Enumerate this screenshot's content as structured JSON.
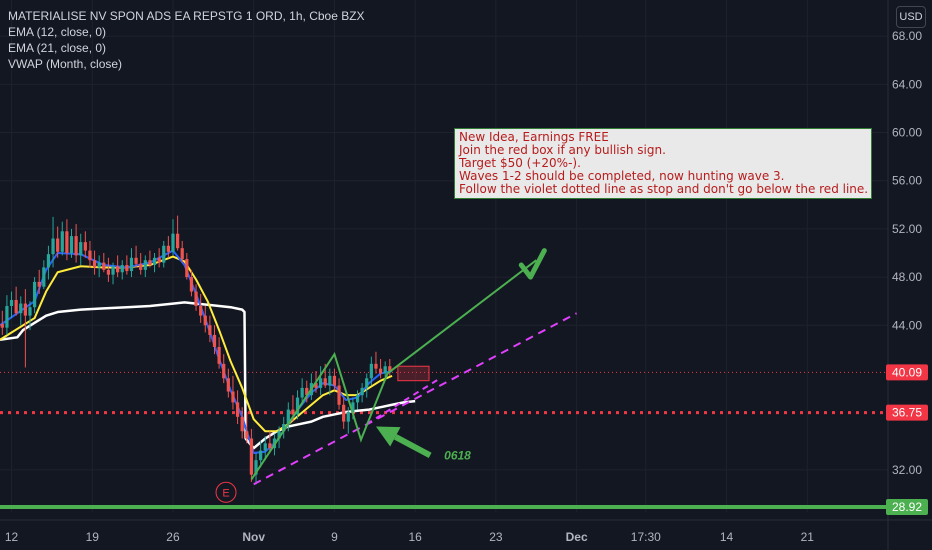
{
  "header": {
    "symbol_line": "MATERIALISE NV SPON ADS EA REPSTG 1 ORD, 1h, Cboe BZX",
    "indicators": [
      "EMA (12, close, 0)",
      "EMA (21, close, 0)",
      "VWAP (Month, close)"
    ],
    "currency": "USD"
  },
  "note": {
    "lines": [
      "New Idea, Earnings FREE",
      "Join the red box if any bullish sign.",
      "Target $50 (+20%-).",
      "Waves 1-2 should be completed, now hunting wave 3.",
      "Follow the violet dotted line as stop and don't go below the red line."
    ]
  },
  "chart_data": {
    "type": "candlestick",
    "y_axis": {
      "ticks": [
        "68.00",
        "64.00",
        "60.00",
        "56.00",
        "52.00",
        "48.00",
        "44.00",
        "32.00"
      ],
      "ylim": [
        28.5,
        71.0
      ]
    },
    "x_axis": {
      "ticks": [
        "12",
        "19",
        "26",
        "Nov",
        "9",
        "16",
        "23",
        "Dec",
        "17:30",
        "14",
        "21"
      ],
      "tick_positions": [
        0,
        7,
        14,
        21,
        28,
        35,
        42,
        49,
        55,
        62,
        69
      ],
      "xlim": [
        -1,
        76
      ]
    },
    "price_labels": [
      {
        "value": 40.09,
        "label": "40.09",
        "color": "#f23645"
      },
      {
        "value": 36.75,
        "label": "36.75",
        "color": "#f23645"
      },
      {
        "value": 28.92,
        "label": "28.92",
        "color": "#4caf50"
      }
    ],
    "horizontal_lines": [
      {
        "value": 40.09,
        "style": "dotted",
        "color": "#f23645"
      },
      {
        "value": 36.75,
        "style": "dotted",
        "color": "#f23645"
      },
      {
        "value": 28.92,
        "style": "solid",
        "color": "#4caf50"
      }
    ],
    "candles": [
      {
        "x": -0.8,
        "o": 44.1,
        "h": 45.2,
        "l": 43.2,
        "c": 43.8
      },
      {
        "x": -0.4,
        "o": 43.8,
        "h": 46.5,
        "l": 43.2,
        "c": 45.6
      },
      {
        "x": 0.0,
        "o": 45.6,
        "h": 46.8,
        "l": 44.6,
        "c": 46.1
      },
      {
        "x": 0.4,
        "o": 46.1,
        "h": 47.2,
        "l": 44.8,
        "c": 45.0
      },
      {
        "x": 0.8,
        "o": 45.0,
        "h": 46.4,
        "l": 44.0,
        "c": 45.8
      },
      {
        "x": 1.2,
        "o": 45.8,
        "h": 47.0,
        "l": 40.5,
        "c": 44.8
      },
      {
        "x": 1.6,
        "o": 44.8,
        "h": 46.0,
        "l": 43.6,
        "c": 45.5
      },
      {
        "x": 2.0,
        "o": 45.5,
        "h": 48.0,
        "l": 45.0,
        "c": 47.6
      },
      {
        "x": 2.4,
        "o": 47.6,
        "h": 48.6,
        "l": 46.6,
        "c": 47.2
      },
      {
        "x": 2.8,
        "o": 47.2,
        "h": 49.4,
        "l": 47.0,
        "c": 48.8
      },
      {
        "x": 3.2,
        "o": 48.8,
        "h": 50.6,
        "l": 47.8,
        "c": 49.9
      },
      {
        "x": 3.6,
        "o": 49.9,
        "h": 53.0,
        "l": 48.8,
        "c": 51.2
      },
      {
        "x": 4.0,
        "o": 51.2,
        "h": 52.2,
        "l": 49.6,
        "c": 50.1
      },
      {
        "x": 4.4,
        "o": 50.1,
        "h": 52.6,
        "l": 49.8,
        "c": 51.8
      },
      {
        "x": 4.8,
        "o": 51.8,
        "h": 52.8,
        "l": 49.4,
        "c": 50.0
      },
      {
        "x": 5.2,
        "o": 50.0,
        "h": 52.0,
        "l": 49.6,
        "c": 51.4
      },
      {
        "x": 5.6,
        "o": 51.4,
        "h": 52.4,
        "l": 49.2,
        "c": 49.8
      },
      {
        "x": 6.0,
        "o": 49.8,
        "h": 51.6,
        "l": 49.0,
        "c": 50.9
      },
      {
        "x": 6.4,
        "o": 50.9,
        "h": 51.8,
        "l": 49.6,
        "c": 50.2
      },
      {
        "x": 6.8,
        "o": 50.2,
        "h": 51.0,
        "l": 48.8,
        "c": 49.4
      },
      {
        "x": 7.2,
        "o": 49.4,
        "h": 50.2,
        "l": 48.2,
        "c": 48.8
      },
      {
        "x": 7.6,
        "o": 48.8,
        "h": 49.8,
        "l": 48.0,
        "c": 49.2
      },
      {
        "x": 8.0,
        "o": 49.2,
        "h": 50.0,
        "l": 48.4,
        "c": 48.6
      },
      {
        "x": 8.4,
        "o": 48.6,
        "h": 49.6,
        "l": 47.6,
        "c": 48.2
      },
      {
        "x": 8.8,
        "o": 48.2,
        "h": 49.2,
        "l": 47.4,
        "c": 48.9
      },
      {
        "x": 9.2,
        "o": 48.9,
        "h": 49.8,
        "l": 48.0,
        "c": 48.4
      },
      {
        "x": 9.6,
        "o": 48.4,
        "h": 49.4,
        "l": 47.8,
        "c": 49.0
      },
      {
        "x": 10.0,
        "o": 49.0,
        "h": 49.8,
        "l": 48.2,
        "c": 48.5
      },
      {
        "x": 10.4,
        "o": 48.5,
        "h": 50.4,
        "l": 48.0,
        "c": 49.6
      },
      {
        "x": 10.8,
        "o": 49.6,
        "h": 50.6,
        "l": 48.8,
        "c": 49.1
      },
      {
        "x": 11.2,
        "o": 49.1,
        "h": 50.0,
        "l": 48.2,
        "c": 48.6
      },
      {
        "x": 11.6,
        "o": 48.6,
        "h": 49.8,
        "l": 48.0,
        "c": 49.4
      },
      {
        "x": 12.0,
        "o": 49.4,
        "h": 50.2,
        "l": 48.8,
        "c": 49.0
      },
      {
        "x": 12.4,
        "o": 49.0,
        "h": 50.0,
        "l": 48.4,
        "c": 49.6
      },
      {
        "x": 12.8,
        "o": 49.6,
        "h": 50.4,
        "l": 48.8,
        "c": 49.2
      },
      {
        "x": 13.2,
        "o": 49.2,
        "h": 51.0,
        "l": 48.8,
        "c": 50.6
      },
      {
        "x": 13.6,
        "o": 50.6,
        "h": 51.4,
        "l": 49.6,
        "c": 50.1
      },
      {
        "x": 14.0,
        "o": 50.1,
        "h": 52.8,
        "l": 49.8,
        "c": 51.6
      },
      {
        "x": 14.4,
        "o": 51.6,
        "h": 53.1,
        "l": 50.2,
        "c": 50.4
      },
      {
        "x": 14.8,
        "o": 50.4,
        "h": 51.0,
        "l": 49.2,
        "c": 49.5
      },
      {
        "x": 15.2,
        "o": 49.5,
        "h": 50.0,
        "l": 47.8,
        "c": 48.0
      },
      {
        "x": 15.6,
        "o": 48.0,
        "h": 48.6,
        "l": 46.4,
        "c": 46.8
      },
      {
        "x": 16.0,
        "o": 46.8,
        "h": 47.4,
        "l": 45.2,
        "c": 45.6
      },
      {
        "x": 16.4,
        "o": 45.6,
        "h": 46.6,
        "l": 44.2,
        "c": 44.8
      },
      {
        "x": 16.8,
        "o": 44.8,
        "h": 45.6,
        "l": 43.4,
        "c": 44.0
      },
      {
        "x": 17.2,
        "o": 44.0,
        "h": 44.8,
        "l": 42.6,
        "c": 43.2
      },
      {
        "x": 17.6,
        "o": 43.2,
        "h": 44.0,
        "l": 41.6,
        "c": 42.2
      },
      {
        "x": 18.0,
        "o": 42.2,
        "h": 43.0,
        "l": 40.4,
        "c": 40.8
      },
      {
        "x": 18.4,
        "o": 40.8,
        "h": 41.6,
        "l": 39.2,
        "c": 39.6
      },
      {
        "x": 18.8,
        "o": 39.6,
        "h": 40.4,
        "l": 38.0,
        "c": 38.5
      },
      {
        "x": 19.2,
        "o": 38.5,
        "h": 39.8,
        "l": 37.0,
        "c": 37.6
      },
      {
        "x": 19.6,
        "o": 37.6,
        "h": 38.6,
        "l": 35.8,
        "c": 36.4
      },
      {
        "x": 20.0,
        "o": 36.4,
        "h": 37.2,
        "l": 34.6,
        "c": 35.2
      },
      {
        "x": 20.4,
        "o": 35.2,
        "h": 36.8,
        "l": 34.2,
        "c": 34.6
      },
      {
        "x": 20.8,
        "o": 34.6,
        "h": 35.4,
        "l": 31.0,
        "c": 31.6
      },
      {
        "x": 21.2,
        "o": 31.6,
        "h": 33.4,
        "l": 30.8,
        "c": 32.8
      },
      {
        "x": 21.6,
        "o": 32.8,
        "h": 34.4,
        "l": 32.2,
        "c": 33.6
      },
      {
        "x": 22.0,
        "o": 33.6,
        "h": 34.8,
        "l": 32.8,
        "c": 34.2
      },
      {
        "x": 22.4,
        "o": 34.2,
        "h": 35.2,
        "l": 33.4,
        "c": 33.8
      },
      {
        "x": 22.8,
        "o": 33.8,
        "h": 35.0,
        "l": 33.2,
        "c": 34.6
      },
      {
        "x": 23.2,
        "o": 34.6,
        "h": 35.6,
        "l": 33.8,
        "c": 35.2
      },
      {
        "x": 23.6,
        "o": 35.2,
        "h": 36.4,
        "l": 34.6,
        "c": 35.8
      },
      {
        "x": 24.0,
        "o": 35.8,
        "h": 37.6,
        "l": 35.2,
        "c": 37.0
      },
      {
        "x": 24.4,
        "o": 37.0,
        "h": 38.2,
        "l": 36.0,
        "c": 36.6
      },
      {
        "x": 24.8,
        "o": 36.6,
        "h": 38.6,
        "l": 36.2,
        "c": 38.0
      },
      {
        "x": 25.2,
        "o": 38.0,
        "h": 39.6,
        "l": 37.4,
        "c": 38.8
      },
      {
        "x": 25.6,
        "o": 38.8,
        "h": 39.4,
        "l": 37.6,
        "c": 38.2
      },
      {
        "x": 26.0,
        "o": 38.2,
        "h": 40.0,
        "l": 37.8,
        "c": 39.2
      },
      {
        "x": 26.4,
        "o": 39.2,
        "h": 40.2,
        "l": 38.4,
        "c": 38.8
      },
      {
        "x": 26.8,
        "o": 38.8,
        "h": 40.6,
        "l": 38.2,
        "c": 39.6
      },
      {
        "x": 27.2,
        "o": 39.6,
        "h": 40.8,
        "l": 38.8,
        "c": 39.0
      },
      {
        "x": 27.6,
        "o": 39.0,
        "h": 40.4,
        "l": 38.2,
        "c": 39.8
      },
      {
        "x": 28.0,
        "o": 39.8,
        "h": 40.4,
        "l": 38.6,
        "c": 39.0
      },
      {
        "x": 28.4,
        "o": 39.0,
        "h": 39.6,
        "l": 37.0,
        "c": 37.4
      },
      {
        "x": 28.8,
        "o": 37.4,
        "h": 38.0,
        "l": 35.4,
        "c": 36.0
      },
      {
        "x": 29.2,
        "o": 36.0,
        "h": 37.2,
        "l": 35.0,
        "c": 36.8
      },
      {
        "x": 29.6,
        "o": 36.8,
        "h": 38.0,
        "l": 36.2,
        "c": 37.6
      },
      {
        "x": 30.0,
        "o": 37.6,
        "h": 38.6,
        "l": 37.0,
        "c": 38.2
      },
      {
        "x": 30.4,
        "o": 38.2,
        "h": 39.2,
        "l": 37.6,
        "c": 38.8
      },
      {
        "x": 30.8,
        "o": 38.8,
        "h": 40.0,
        "l": 38.0,
        "c": 39.6
      },
      {
        "x": 31.2,
        "o": 39.6,
        "h": 41.4,
        "l": 39.0,
        "c": 40.8
      },
      {
        "x": 31.6,
        "o": 40.8,
        "h": 41.8,
        "l": 40.0,
        "c": 40.4
      },
      {
        "x": 32.0,
        "o": 40.4,
        "h": 41.2,
        "l": 39.6,
        "c": 40.0
      },
      {
        "x": 32.4,
        "o": 40.0,
        "h": 41.0,
        "l": 39.4,
        "c": 40.6
      },
      {
        "x": 32.8,
        "o": 40.6,
        "h": 41.2,
        "l": 39.8,
        "c": 40.2
      }
    ],
    "ema12": [
      [
        -1,
        44.0
      ],
      [
        2,
        46.0
      ],
      [
        3,
        48.6
      ],
      [
        4,
        50.0
      ],
      [
        6,
        49.9
      ],
      [
        8,
        49.0
      ],
      [
        10,
        48.8
      ],
      [
        12,
        49.2
      ],
      [
        14,
        50.2
      ],
      [
        15,
        49.0
      ],
      [
        16,
        46.6
      ],
      [
        17,
        44.0
      ],
      [
        18,
        41.2
      ],
      [
        19,
        38.6
      ],
      [
        20,
        36.4
      ],
      [
        21,
        33.4
      ],
      [
        22,
        33.5
      ],
      [
        23,
        34.4
      ],
      [
        24,
        35.8
      ],
      [
        25,
        37.2
      ],
      [
        26,
        38.4
      ],
      [
        27,
        39.2
      ],
      [
        28,
        39.0
      ],
      [
        29,
        37.8
      ],
      [
        30,
        38.0
      ],
      [
        31,
        39.2
      ],
      [
        32,
        40.0
      ],
      [
        33,
        40.2
      ]
    ],
    "ema21": [
      [
        -1,
        42.8
      ],
      [
        2,
        44.6
      ],
      [
        3,
        46.8
      ],
      [
        4,
        48.4
      ],
      [
        6,
        48.9
      ],
      [
        8,
        48.8
      ],
      [
        10,
        48.8
      ],
      [
        12,
        49.0
      ],
      [
        14,
        49.7
      ],
      [
        15,
        49.3
      ],
      [
        16,
        47.8
      ],
      [
        17,
        46.0
      ],
      [
        18,
        43.6
      ],
      [
        19,
        41.0
      ],
      [
        20,
        38.8
      ],
      [
        21,
        36.2
      ],
      [
        22,
        35.2
      ],
      [
        23,
        35.2
      ],
      [
        24,
        35.8
      ],
      [
        25,
        36.6
      ],
      [
        26,
        37.4
      ],
      [
        27,
        38.2
      ],
      [
        28,
        38.6
      ],
      [
        29,
        38.2
      ],
      [
        30,
        38.2
      ],
      [
        31,
        38.8
      ],
      [
        32,
        39.4
      ],
      [
        33,
        39.8
      ]
    ],
    "vwap": [
      [
        -1,
        42.8
      ],
      [
        0.5,
        43.0
      ],
      [
        1,
        43.6
      ],
      [
        2,
        44.2
      ],
      [
        3,
        44.8
      ],
      [
        4,
        45.1
      ],
      [
        6,
        45.3
      ],
      [
        8,
        45.4
      ],
      [
        10,
        45.5
      ],
      [
        12,
        45.6
      ],
      [
        14,
        45.8
      ],
      [
        15,
        45.9
      ],
      [
        16,
        45.8
      ],
      [
        17,
        45.7
      ],
      [
        18,
        45.6
      ],
      [
        19,
        45.5
      ],
      [
        20,
        45.3
      ],
      [
        20.2,
        45.1
      ],
      [
        20.3,
        34.6
      ],
      [
        21,
        33.8
      ],
      [
        22,
        34.6
      ],
      [
        23,
        35.2
      ],
      [
        24,
        35.6
      ],
      [
        25,
        35.8
      ],
      [
        26,
        36.0
      ],
      [
        27,
        36.4
      ],
      [
        28,
        36.6
      ],
      [
        29,
        36.8
      ],
      [
        30,
        36.9
      ],
      [
        31,
        37.0
      ],
      [
        32,
        37.2
      ],
      [
        33,
        37.4
      ],
      [
        34,
        37.6
      ],
      [
        35,
        37.7
      ]
    ],
    "annotations": {
      "wave_zigzag": [
        [
          20.8,
          31.2
        ],
        [
          28.0,
          41.6
        ],
        [
          30.3,
          34.5
        ],
        [
          32.6,
          40.0
        ]
      ],
      "target_line": [
        [
          32.6,
          40.0
        ],
        [
          45.5,
          49.4
        ]
      ],
      "checkmark": [
        [
          44.2,
          49.0
        ],
        [
          45.0,
          48.0
        ],
        [
          46.2,
          50.2
        ]
      ],
      "stop_dashed_line": [
        [
          21.0,
          30.8
        ],
        [
          49.0,
          45.0
        ]
      ],
      "lower_dashed_line": [
        [
          30.8,
          35.8
        ],
        [
          37.0,
          39.5
        ]
      ],
      "red_box": {
        "x0": 33.5,
        "x1": 36.2,
        "y0": 39.4,
        "y1": 40.6
      },
      "arrow": {
        "from": [
          36.3,
          33.2
        ],
        "to": [
          31.6,
          35.6
        ]
      },
      "arrow_label": "0618",
      "event_marker": {
        "x": 18.6,
        "y": 30.8,
        "label": "E"
      }
    }
  }
}
